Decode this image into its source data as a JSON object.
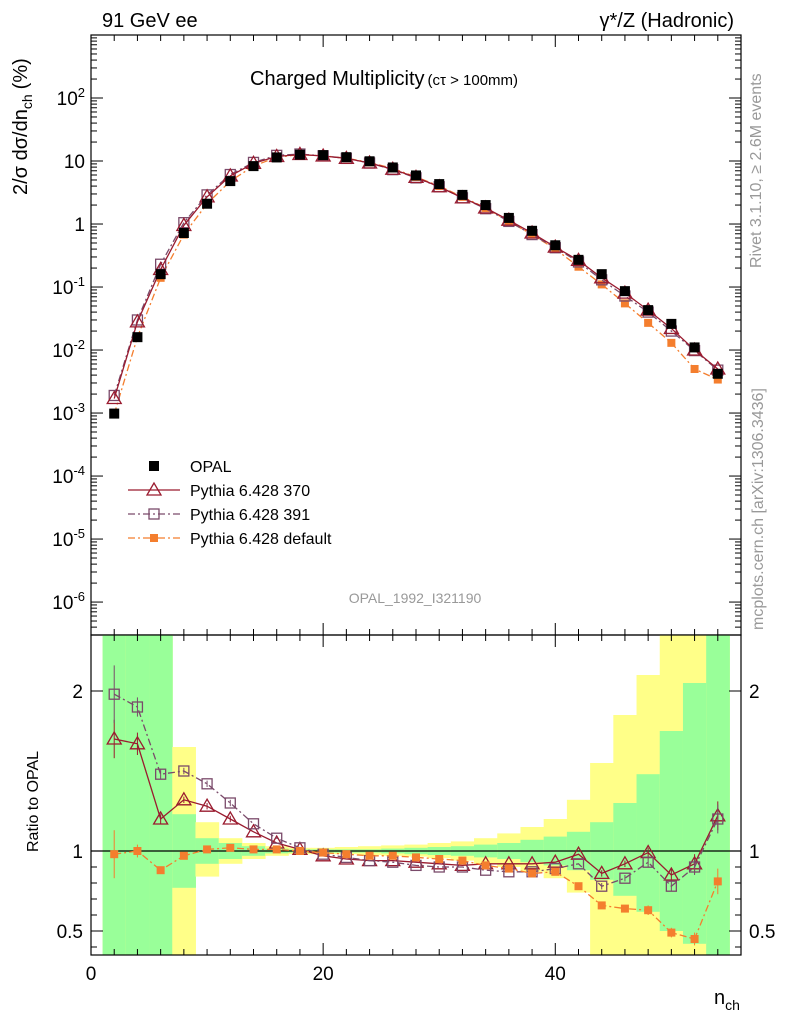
{
  "header": {
    "left": "91 GeV ee",
    "right": "γ*/Z (Hadronic)"
  },
  "side_labels": {
    "rivet": "Rivet 3.1.10, ≥ 2.6M events",
    "mcplots": "mcplots.cern.ch [arXiv:1306.3436]"
  },
  "chart_data": [
    {
      "type": "scatter",
      "title": "Charged Multiplicity",
      "title_sub": "(cτ > 100mm)",
      "analysis_label": "OPAL_1992_I321190",
      "ylabel": "2/σ dσ/dn_ch (%)",
      "ylabel_main": "2/σ dσ/dn",
      "ylabel_sub": "ch",
      "ylabel_unit": "(%)",
      "yscale": "log",
      "ylim": [
        3e-07,
        1000
      ],
      "xlim": [
        0,
        56
      ],
      "x_ticks": [
        "0",
        "20",
        "40"
      ],
      "y_ticks": [
        {
          "base": "10",
          "exp": "-6",
          "value": 1e-06
        },
        {
          "base": "10",
          "exp": "-5",
          "value": 1e-05
        },
        {
          "base": "10",
          "exp": "-4",
          "value": 0.0001
        },
        {
          "base": "10",
          "exp": "-3",
          "value": 0.001
        },
        {
          "base": "10",
          "exp": "-2",
          "value": 0.01
        },
        {
          "base": "10",
          "exp": "-1",
          "value": 0.1
        },
        {
          "base": "1",
          "exp": "",
          "value": 1
        },
        {
          "base": "10",
          "exp": "",
          "value": 10
        },
        {
          "base": "10",
          "exp": "2",
          "value": 100
        }
      ],
      "x": [
        2,
        4,
        6,
        8,
        10,
        12,
        14,
        16,
        18,
        20,
        22,
        24,
        26,
        28,
        30,
        32,
        34,
        36,
        38,
        40,
        42,
        44,
        46,
        48,
        50,
        52,
        54
      ],
      "legend": [
        {
          "name": "OPAL",
          "color": "#000000",
          "marker": "square-filled",
          "line": "none"
        },
        {
          "name": "Pythia 6.428 370",
          "color": "#9a1b2f",
          "marker": "triangle-open",
          "line": "solid"
        },
        {
          "name": "Pythia 6.428 391",
          "color": "#7a4a6a",
          "marker": "square-open",
          "line": "dash-dot"
        },
        {
          "name": "Pythia 6.428 default",
          "color": "#f47e2e",
          "marker": "square-filled-small",
          "line": "dash-dot"
        }
      ],
      "series": [
        {
          "name": "OPAL",
          "values": [
            0.00098,
            0.016,
            0.16,
            0.72,
            2.1,
            4.8,
            8.3,
            11.4,
            12.6,
            12.4,
            11.5,
            9.9,
            7.9,
            5.9,
            4.3,
            2.9,
            2.0,
            1.25,
            0.78,
            0.46,
            0.27,
            0.16,
            0.086,
            0.043,
            0.026,
            0.011,
            0.0042
          ]
        },
        {
          "name": "Pythia 6.428 370",
          "values": [
            0.0017,
            0.028,
            0.19,
            0.95,
            2.7,
            5.8,
            9.2,
            11.8,
            12.7,
            12.0,
            11.0,
            9.3,
            7.4,
            5.5,
            3.9,
            2.6,
            1.8,
            1.15,
            0.72,
            0.43,
            0.265,
            0.14,
            0.08,
            0.043,
            0.022,
            0.01,
            0.005
          ]
        },
        {
          "name": "Pythia 6.428 391",
          "values": [
            0.0019,
            0.03,
            0.23,
            1.05,
            2.9,
            6.1,
            9.5,
            12.3,
            12.9,
            12.1,
            11.0,
            9.3,
            7.3,
            5.4,
            3.9,
            2.6,
            1.75,
            1.1,
            0.68,
            0.42,
            0.25,
            0.13,
            0.072,
            0.04,
            0.02,
            0.0098,
            0.0048
          ]
        },
        {
          "name": "Pythia 6.428 default",
          "values": [
            0.00096,
            0.016,
            0.14,
            0.68,
            2.1,
            4.8,
            8.3,
            11.5,
            12.6,
            12.1,
            11.1,
            9.5,
            7.6,
            5.6,
            4.0,
            2.7,
            1.8,
            1.1,
            0.68,
            0.4,
            0.21,
            0.11,
            0.055,
            0.027,
            0.013,
            0.005,
            0.0034
          ]
        }
      ]
    },
    {
      "type": "scatter",
      "ylabel": "Ratio to OPAL",
      "xlabel": "n_ch",
      "xlabel_main": "n",
      "xlabel_sub": "ch",
      "xlim": [
        0,
        56
      ],
      "ylim": [
        0.35,
        2.35
      ],
      "y_ticks": [
        "0.5",
        "1",
        "2"
      ],
      "x": [
        2,
        4,
        6,
        8,
        10,
        12,
        14,
        16,
        18,
        20,
        22,
        24,
        26,
        28,
        30,
        32,
        34,
        36,
        38,
        40,
        42,
        44,
        46,
        48,
        50,
        52,
        54
      ],
      "reference_line": 1,
      "bands": {
        "colors": {
          "inner": "#99ff99",
          "outer": "#ffff88"
        },
        "bin_edges": [
          1,
          3,
          5,
          7,
          9,
          11,
          13,
          15,
          17,
          19,
          21,
          23,
          25,
          27,
          29,
          31,
          33,
          35,
          37,
          39,
          41,
          43,
          45,
          47,
          49,
          51,
          53,
          55
        ],
        "inner_lo": [
          0.35,
          0.35,
          0.35,
          0.77,
          0.92,
          0.95,
          0.97,
          0.985,
          0.99,
          0.99,
          0.99,
          0.99,
          0.985,
          0.98,
          0.975,
          0.97,
          0.96,
          0.95,
          0.93,
          0.91,
          0.88,
          0.82,
          0.72,
          0.62,
          0.5,
          0.42,
          0.35
        ],
        "inner_hi": [
          2.35,
          2.35,
          2.35,
          1.23,
          1.08,
          1.05,
          1.03,
          1.015,
          1.01,
          1.01,
          1.01,
          1.01,
          1.015,
          1.02,
          1.025,
          1.03,
          1.04,
          1.05,
          1.07,
          1.09,
          1.12,
          1.18,
          1.3,
          1.48,
          1.75,
          2.05,
          2.35
        ],
        "outer_lo": [
          0.35,
          0.35,
          0.35,
          0.35,
          0.84,
          0.92,
          0.95,
          0.97,
          0.98,
          0.98,
          0.98,
          0.975,
          0.97,
          0.965,
          0.955,
          0.94,
          0.92,
          0.9,
          0.87,
          0.83,
          0.74,
          0.35,
          0.35,
          0.35,
          0.35,
          0.35,
          0.35
        ],
        "outer_hi": [
          2.35,
          2.35,
          2.35,
          1.65,
          1.18,
          1.08,
          1.05,
          1.03,
          1.02,
          1.02,
          1.025,
          1.03,
          1.035,
          1.04,
          1.05,
          1.06,
          1.08,
          1.11,
          1.15,
          1.2,
          1.32,
          1.55,
          1.85,
          2.1,
          2.35,
          2.35,
          2.35
        ]
      },
      "series": [
        {
          "name": "Pythia 6.428 370",
          "values": [
            1.7,
            1.67,
            1.2,
            1.32,
            1.28,
            1.2,
            1.12,
            1.05,
            1.01,
            0.97,
            0.95,
            0.94,
            0.94,
            0.93,
            0.92,
            0.91,
            0.92,
            0.92,
            0.92,
            0.93,
            0.98,
            0.86,
            0.92,
            0.99,
            0.85,
            0.92,
            1.22
          ],
          "err": [
            0.12,
            0.07,
            0.03,
            0.02,
            0.02,
            0.02,
            0.01,
            0.01,
            0.01,
            0.01,
            0.01,
            0.01,
            0.01,
            0.01,
            0.01,
            0.01,
            0.01,
            0.01,
            0.01,
            0.01,
            0.01,
            0.02,
            0.02,
            0.03,
            0.04,
            0.06,
            0.09
          ]
        },
        {
          "name": "Pythia 6.428 391",
          "values": [
            1.98,
            1.9,
            1.48,
            1.5,
            1.42,
            1.3,
            1.17,
            1.08,
            1.02,
            0.98,
            0.96,
            0.94,
            0.93,
            0.91,
            0.9,
            0.9,
            0.88,
            0.87,
            0.87,
            0.89,
            0.92,
            0.78,
            0.83,
            0.93,
            0.78,
            0.9,
            1.2
          ],
          "err": [
            0.18,
            0.06,
            0.03,
            0.02,
            0.02,
            0.02,
            0.01,
            0.01,
            0.01,
            0.01,
            0.01,
            0.01,
            0.01,
            0.01,
            0.01,
            0.01,
            0.01,
            0.01,
            0.01,
            0.01,
            0.01,
            0.02,
            0.02,
            0.03,
            0.03,
            0.05,
            0.09
          ]
        },
        {
          "name": "Pythia 6.428 default",
          "values": [
            0.98,
            1.0,
            0.88,
            0.97,
            1.01,
            1.02,
            1.01,
            1.01,
            1.0,
            0.99,
            0.98,
            0.97,
            0.97,
            0.96,
            0.95,
            0.94,
            0.91,
            0.89,
            0.86,
            0.87,
            0.78,
            0.66,
            0.64,
            0.63,
            0.49,
            0.45,
            0.81
          ],
          "err": [
            0.15,
            0.04,
            0.02,
            0.02,
            0.01,
            0.01,
            0.01,
            0.01,
            0.01,
            0.01,
            0.01,
            0.01,
            0.01,
            0.01,
            0.01,
            0.01,
            0.01,
            0.01,
            0.01,
            0.01,
            0.01,
            0.01,
            0.02,
            0.03,
            0.03,
            0.04,
            0.08
          ]
        }
      ]
    }
  ]
}
